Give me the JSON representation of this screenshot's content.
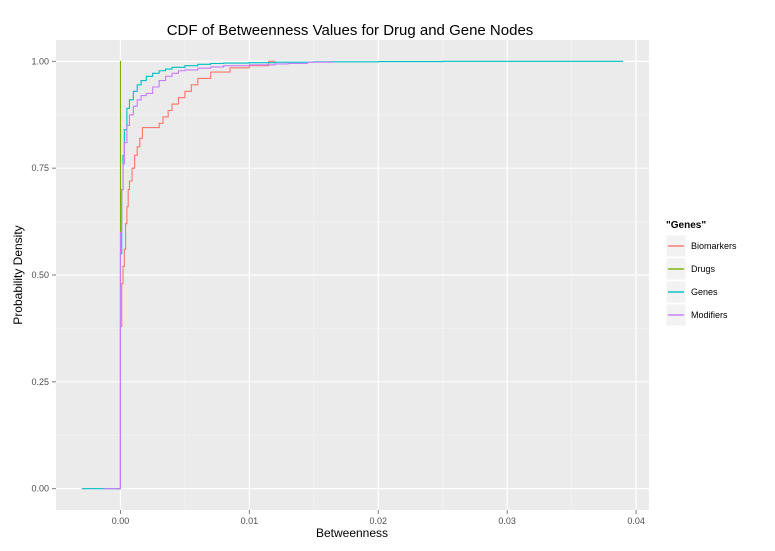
{
  "chart_data": {
    "type": "line",
    "title": "CDF of Betweenness Values for Drug and Gene Nodes",
    "xlabel": "Betweenness",
    "ylabel": "Probability Density",
    "xlim": [
      -0.005,
      0.041
    ],
    "ylim": [
      -0.05,
      1.05
    ],
    "x_ticks": [
      0.0,
      0.01,
      0.02,
      0.03,
      0.04
    ],
    "x_tick_labels": [
      "0.00",
      "0.01",
      "0.02",
      "0.03",
      "0.04"
    ],
    "y_ticks": [
      0.0,
      0.25,
      0.5,
      0.75,
      1.0
    ],
    "y_tick_labels": [
      "0.00",
      "0.25",
      "0.50",
      "0.75",
      "1.00"
    ],
    "grid": true,
    "legend": {
      "title": "\"Genes\"",
      "position": "right"
    },
    "series": [
      {
        "name": "Biomarkers",
        "color": "#F8766D",
        "x": [
          -0.0003,
          0,
          0.0001,
          0.0002,
          0.0003,
          0.0004,
          0.0005,
          0.0006,
          0.0007,
          0.0009,
          0.0011,
          0.0013,
          0.0015,
          0.0017,
          0.002,
          0.0025,
          0.003,
          0.0033,
          0.0037,
          0.004,
          0.0045,
          0.005,
          0.0055,
          0.006,
          0.007,
          0.0085,
          0.01,
          0.0115,
          0.012
        ],
        "y": [
          0,
          0.38,
          0.48,
          0.52,
          0.56,
          0.62,
          0.66,
          0.7,
          0.72,
          0.75,
          0.78,
          0.8,
          0.82,
          0.845,
          0.845,
          0.845,
          0.855,
          0.87,
          0.885,
          0.9,
          0.915,
          0.93,
          0.945,
          0.96,
          0.975,
          0.985,
          0.99,
          1.0,
          1.0
        ]
      },
      {
        "name": "Drugs",
        "color": "#7CAE00",
        "x": [
          -0.0003,
          0,
          0,
          5e-05
        ],
        "y": [
          0,
          0,
          1.0,
          1.0
        ]
      },
      {
        "name": "Genes",
        "color": "#00BFC4",
        "x": [
          -0.003,
          0,
          0.0001,
          0.0002,
          0.0003,
          0.0005,
          0.0007,
          0.001,
          0.0013,
          0.0016,
          0.002,
          0.0025,
          0.003,
          0.0035,
          0.004,
          0.005,
          0.006,
          0.007,
          0.008,
          0.01,
          0.012,
          0.015,
          0.02,
          0.025,
          0.03,
          0.035,
          0.039
        ],
        "y": [
          0,
          0.55,
          0.7,
          0.78,
          0.84,
          0.89,
          0.91,
          0.93,
          0.945,
          0.955,
          0.965,
          0.972,
          0.978,
          0.982,
          0.986,
          0.99,
          0.993,
          0.995,
          0.996,
          0.997,
          0.998,
          0.999,
          0.9995,
          1.0,
          1.0,
          1.0,
          1.0
        ]
      },
      {
        "name": "Modifiers",
        "color": "#C77CFF",
        "x": [
          -0.0013,
          0,
          0.0001,
          0.0002,
          0.0003,
          0.0005,
          0.0007,
          0.001,
          0.0013,
          0.0016,
          0.002,
          0.0025,
          0.003,
          0.0035,
          0.004,
          0.0045,
          0.005,
          0.006,
          0.007,
          0.008,
          0.01,
          0.012,
          0.013,
          0.0145,
          0.0165
        ],
        "y": [
          0,
          0.6,
          0.7,
          0.76,
          0.81,
          0.85,
          0.875,
          0.895,
          0.91,
          0.92,
          0.925,
          0.94,
          0.955,
          0.965,
          0.972,
          0.978,
          0.98,
          0.984,
          0.987,
          0.99,
          0.992,
          0.994,
          0.995,
          0.998,
          1.0
        ]
      }
    ]
  }
}
